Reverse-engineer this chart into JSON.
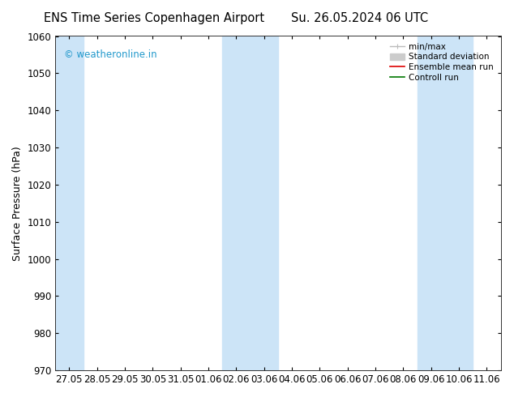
{
  "title_left": "ENS Time Series Copenhagen Airport",
  "title_right": "Su. 26.05.2024 06 UTC",
  "ylabel": "Surface Pressure (hPa)",
  "ylim": [
    970,
    1060
  ],
  "yticks": [
    970,
    980,
    990,
    1000,
    1010,
    1020,
    1030,
    1040,
    1050,
    1060
  ],
  "xtick_labels": [
    "27.05",
    "28.05",
    "29.05",
    "30.05",
    "31.05",
    "01.06",
    "02.06",
    "03.06",
    "04.06",
    "05.06",
    "06.06",
    "07.06",
    "08.06",
    "09.06",
    "10.06",
    "11.06"
  ],
  "background_color": "#ffffff",
  "plot_bg_color": "#ffffff",
  "shaded_bands": [
    {
      "xstart": -0.5,
      "xend": 0.5,
      "color": "#cce4f7"
    },
    {
      "xstart": 5.5,
      "xend": 7.5,
      "color": "#cce4f7"
    },
    {
      "xstart": 12.5,
      "xend": 14.5,
      "color": "#cce4f7"
    }
  ],
  "watermark_text": "© weatheronline.in",
  "watermark_color": "#2299cc",
  "legend_items": [
    {
      "label": "min/max",
      "color": "#bbbbbb",
      "lw": 1.0,
      "marker": "|-|"
    },
    {
      "label": "Standard deviation",
      "color": "#cccccc",
      "lw": 7,
      "marker": "bar"
    },
    {
      "label": "Ensemble mean run",
      "color": "#dd0000",
      "lw": 1.2,
      "marker": "line"
    },
    {
      "label": "Controll run",
      "color": "#007700",
      "lw": 1.2,
      "marker": "line"
    }
  ],
  "title_fontsize": 10.5,
  "ylabel_fontsize": 9,
  "tick_fontsize": 8.5,
  "legend_fontsize": 7.5,
  "watermark_fontsize": 8.5
}
